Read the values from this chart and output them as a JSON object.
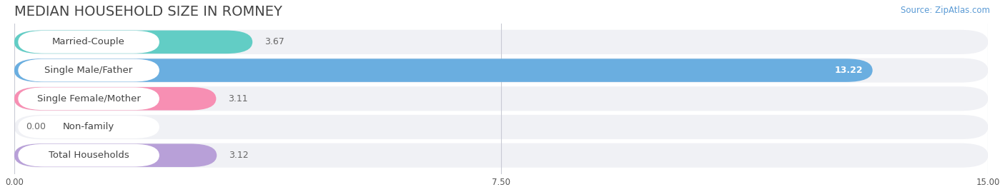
{
  "title": "MEDIAN HOUSEHOLD SIZE IN ROMNEY",
  "source": "Source: ZipAtlas.com",
  "categories": [
    "Married-Couple",
    "Single Male/Father",
    "Single Female/Mother",
    "Non-family",
    "Total Households"
  ],
  "values": [
    3.67,
    13.22,
    3.11,
    0.0,
    3.12
  ],
  "bar_colors": [
    "#62cdc5",
    "#6aaee0",
    "#f78fb3",
    "#f5c89a",
    "#b8a0d8"
  ],
  "xlim": [
    0,
    15.0
  ],
  "xticks": [
    0.0,
    7.5,
    15.0
  ],
  "bar_height": 0.62,
  "label_fontsize": 9.5,
  "value_fontsize": 9,
  "value_inside_color": "#ffffff",
  "value_outside_color": "#666666",
  "title_fontsize": 14,
  "source_fontsize": 8.5,
  "background_color": "#ffffff",
  "row_bg": "#f0f1f5",
  "row_bg_alt": "#e8eaf0"
}
